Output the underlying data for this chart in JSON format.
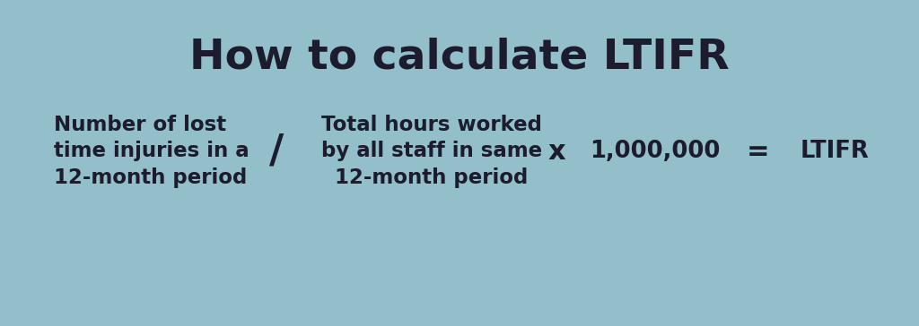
{
  "background_color": "#93bfcb",
  "title": "How to calculate LTIFR",
  "title_fontsize": 34,
  "title_fontweight": "bold",
  "title_color": "#1c1c2e",
  "text_color": "#1c1c2e",
  "term1_line1": "Number of lost",
  "term1_line2": "time injuries in a",
  "term1_line3": "12-month period",
  "operator1": "/",
  "term2_line1": "Total hours worked",
  "term2_line2": "by all staff in same",
  "term2_line3": "12-month period",
  "operator2": "x",
  "term3": "1,000,000",
  "operator3": "=",
  "result": "LTIFR",
  "body_fontsize": 16.5,
  "operator_fontsize": 22
}
